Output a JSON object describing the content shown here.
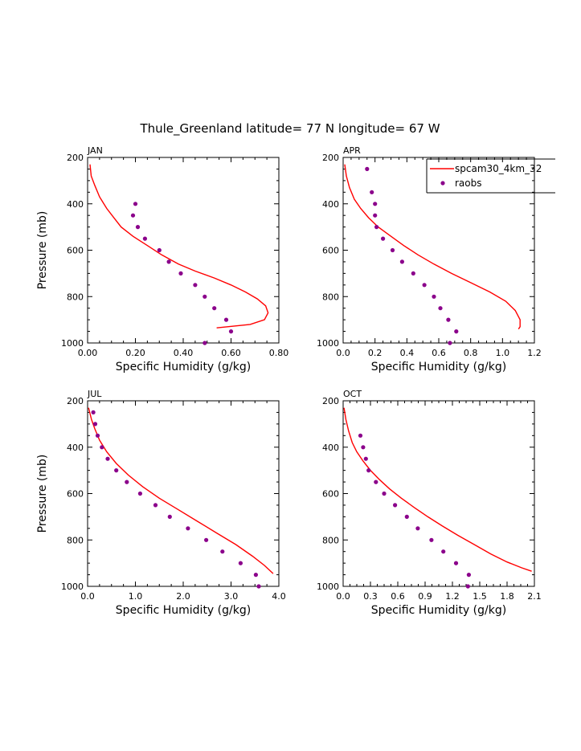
{
  "figure": {
    "title": "Thule_Greenland   latitude= 77 N  longitude= 67 W"
  },
  "colors": {
    "model_line": "#ff0000",
    "obs_dots": "#8b008b",
    "axis": "#000000"
  },
  "legend": {
    "placement": "top-right of APR panel (clipped)",
    "entries": [
      {
        "label": "spcam30_4km_32",
        "style": "line",
        "color": "#ff0000"
      },
      {
        "label": "raobs",
        "style": "dots",
        "color": "#8b008b"
      }
    ]
  },
  "chart_data": [
    {
      "type": "line",
      "panel": "JAN",
      "xlabel": "Specific Humidity (g/kg)",
      "ylabel": "Pressure (mb)",
      "xlim": [
        0,
        0.8
      ],
      "ylim": [
        1000,
        200
      ],
      "y_inverted": true,
      "xticks": [
        "0.00",
        "0.20",
        "0.40",
        "0.60",
        "0.80"
      ],
      "yticks": [
        "200",
        "400",
        "600",
        "800",
        "1000"
      ],
      "series": [
        {
          "name": "spcam30_4km_32",
          "style": "line",
          "points": [
            [
              0.01,
              230
            ],
            [
              0.015,
              280
            ],
            [
              0.03,
              320
            ],
            [
              0.05,
              370
            ],
            [
              0.08,
              420
            ],
            [
              0.11,
              460
            ],
            [
              0.14,
              500
            ],
            [
              0.19,
              540
            ],
            [
              0.25,
              580
            ],
            [
              0.31,
              620
            ],
            [
              0.38,
              660
            ],
            [
              0.45,
              690
            ],
            [
              0.53,
              720
            ],
            [
              0.6,
              750
            ],
            [
              0.66,
              780
            ],
            [
              0.71,
              810
            ],
            [
              0.745,
              840
            ],
            [
              0.755,
              870
            ],
            [
              0.74,
              900
            ],
            [
              0.68,
              920
            ],
            [
              0.54,
              935
            ]
          ]
        },
        {
          "name": "raobs",
          "style": "dots",
          "points": [
            [
              0.2,
              400
            ],
            [
              0.19,
              450
            ],
            [
              0.21,
              500
            ],
            [
              0.24,
              550
            ],
            [
              0.3,
              600
            ],
            [
              0.34,
              650
            ],
            [
              0.39,
              700
            ],
            [
              0.45,
              750
            ],
            [
              0.49,
              800
            ],
            [
              0.53,
              850
            ],
            [
              0.58,
              900
            ],
            [
              0.6,
              950
            ],
            [
              0.49,
              1000
            ]
          ]
        }
      ]
    },
    {
      "type": "line",
      "panel": "APR",
      "xlabel": "Specific Humidity (g/kg)",
      "ylabel": "",
      "xlim": [
        0,
        1.2
      ],
      "ylim": [
        1000,
        200
      ],
      "y_inverted": true,
      "xticks": [
        "0.0",
        "0.2",
        "0.4",
        "0.6",
        "0.8",
        "1.0",
        "1.2"
      ],
      "yticks": [
        "200",
        "400",
        "600",
        "800",
        "1000"
      ],
      "series": [
        {
          "name": "spcam30_4km_32",
          "style": "line",
          "points": [
            [
              0.01,
              230
            ],
            [
              0.02,
              280
            ],
            [
              0.04,
              330
            ],
            [
              0.07,
              380
            ],
            [
              0.11,
              420
            ],
            [
              0.16,
              460
            ],
            [
              0.22,
              500
            ],
            [
              0.3,
              540
            ],
            [
              0.38,
              580
            ],
            [
              0.47,
              620
            ],
            [
              0.57,
              660
            ],
            [
              0.68,
              700
            ],
            [
              0.8,
              740
            ],
            [
              0.92,
              780
            ],
            [
              1.02,
              820
            ],
            [
              1.08,
              860
            ],
            [
              1.11,
              900
            ],
            [
              1.11,
              930
            ],
            [
              1.1,
              940
            ]
          ]
        },
        {
          "name": "raobs",
          "style": "dots",
          "points": [
            [
              0.15,
              250
            ],
            [
              0.18,
              350
            ],
            [
              0.2,
              400
            ],
            [
              0.2,
              450
            ],
            [
              0.21,
              500
            ],
            [
              0.25,
              550
            ],
            [
              0.31,
              600
            ],
            [
              0.37,
              650
            ],
            [
              0.44,
              700
            ],
            [
              0.51,
              750
            ],
            [
              0.57,
              800
            ],
            [
              0.61,
              850
            ],
            [
              0.66,
              900
            ],
            [
              0.71,
              950
            ],
            [
              0.67,
              1000
            ]
          ]
        }
      ]
    },
    {
      "type": "line",
      "panel": "JUL",
      "xlabel": "Specific Humidity (g/kg)",
      "ylabel": "Pressure (mb)",
      "xlim": [
        0,
        4.0
      ],
      "ylim": [
        1000,
        200
      ],
      "y_inverted": true,
      "xticks": [
        "0.0",
        "1.0",
        "2.0",
        "3.0",
        "4.0"
      ],
      "yticks": [
        "200",
        "400",
        "600",
        "800",
        "1000"
      ],
      "series": [
        {
          "name": "spcam30_4km_32",
          "style": "line",
          "points": [
            [
              0.02,
              230
            ],
            [
              0.08,
              280
            ],
            [
              0.15,
              320
            ],
            [
              0.25,
              370
            ],
            [
              0.4,
              420
            ],
            [
              0.6,
              470
            ],
            [
              0.85,
              520
            ],
            [
              1.15,
              570
            ],
            [
              1.5,
              620
            ],
            [
              1.9,
              670
            ],
            [
              2.3,
              720
            ],
            [
              2.7,
              770
            ],
            [
              3.1,
              820
            ],
            [
              3.45,
              870
            ],
            [
              3.7,
              910
            ],
            [
              3.88,
              945
            ]
          ]
        },
        {
          "name": "raobs",
          "style": "dots",
          "points": [
            [
              0.12,
              250
            ],
            [
              0.16,
              300
            ],
            [
              0.21,
              350
            ],
            [
              0.3,
              400
            ],
            [
              0.42,
              450
            ],
            [
              0.6,
              500
            ],
            [
              0.82,
              550
            ],
            [
              1.1,
              600
            ],
            [
              1.42,
              650
            ],
            [
              1.72,
              700
            ],
            [
              2.1,
              750
            ],
            [
              2.48,
              800
            ],
            [
              2.82,
              850
            ],
            [
              3.2,
              900
            ],
            [
              3.52,
              950
            ],
            [
              3.58,
              1000
            ]
          ]
        }
      ]
    },
    {
      "type": "line",
      "panel": "OCT",
      "xlabel": "Specific Humidity (g/kg)",
      "ylabel": "",
      "xlim": [
        0,
        2.1
      ],
      "ylim": [
        1000,
        200
      ],
      "y_inverted": true,
      "xticks": [
        "0.0",
        "0.3",
        "0.6",
        "0.9",
        "1.2",
        "1.5",
        "1.8",
        "2.1"
      ],
      "yticks": [
        "200",
        "400",
        "600",
        "800",
        "1000"
      ],
      "series": [
        {
          "name": "spcam30_4km_32",
          "style": "line",
          "points": [
            [
              0.01,
              230
            ],
            [
              0.03,
              280
            ],
            [
              0.06,
              330
            ],
            [
              0.1,
              380
            ],
            [
              0.15,
              420
            ],
            [
              0.22,
              460
            ],
            [
              0.3,
              500
            ],
            [
              0.4,
              540
            ],
            [
              0.51,
              580
            ],
            [
              0.64,
              620
            ],
            [
              0.78,
              660
            ],
            [
              0.93,
              700
            ],
            [
              1.09,
              740
            ],
            [
              1.26,
              780
            ],
            [
              1.44,
              820
            ],
            [
              1.62,
              860
            ],
            [
              1.8,
              895
            ],
            [
              1.96,
              920
            ],
            [
              2.07,
              935
            ]
          ]
        },
        {
          "name": "raobs",
          "style": "dots",
          "points": [
            [
              0.19,
              350
            ],
            [
              0.22,
              400
            ],
            [
              0.25,
              450
            ],
            [
              0.28,
              500
            ],
            [
              0.36,
              550
            ],
            [
              0.45,
              600
            ],
            [
              0.57,
              650
            ],
            [
              0.7,
              700
            ],
            [
              0.82,
              750
            ],
            [
              0.97,
              800
            ],
            [
              1.1,
              850
            ],
            [
              1.24,
              900
            ],
            [
              1.38,
              950
            ],
            [
              1.37,
              1000
            ]
          ]
        }
      ]
    }
  ]
}
